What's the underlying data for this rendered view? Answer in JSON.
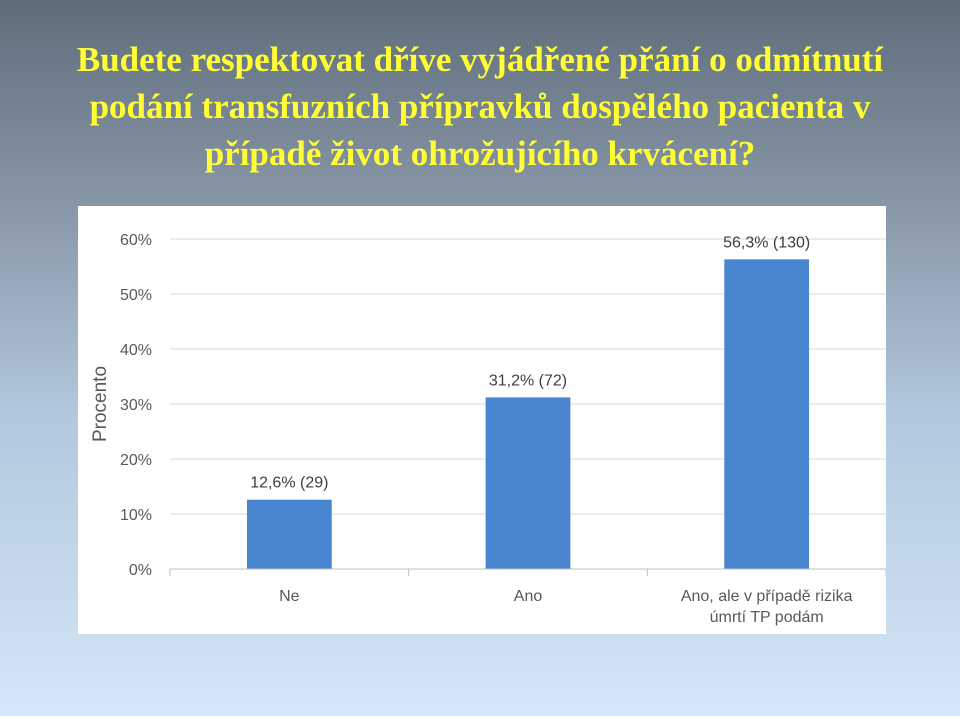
{
  "slide": {
    "title": "Budete respektovat dříve vyjádřené přání o odmítnutí podání transfuzních přípravků dospělého pacienta v případě život ohrožujícího krvácení?"
  },
  "colors": {
    "bar": "#4a86d0",
    "grid": "#d9d9d9",
    "axis": "#bfbfbf",
    "title": "#ffff33"
  },
  "chart_data": {
    "type": "bar",
    "title": "",
    "xlabel": "",
    "ylabel": "Procento",
    "ylim": [
      0,
      60
    ],
    "yticks": [
      0,
      10,
      20,
      30,
      40,
      50,
      60
    ],
    "ytick_labels": [
      "0%",
      "10%",
      "20%",
      "30%",
      "40%",
      "50%",
      "60%"
    ],
    "grid": true,
    "legend": "none",
    "categories": [
      [
        "Ne"
      ],
      [
        "Ano"
      ],
      [
        "Ano, ale v případě rizika",
        "úmrtí TP podám"
      ]
    ],
    "values": [
      12.6,
      31.2,
      56.3
    ],
    "data_labels": [
      "12,6% (29)",
      "31,2% (72)",
      "56,3% (130)"
    ]
  }
}
